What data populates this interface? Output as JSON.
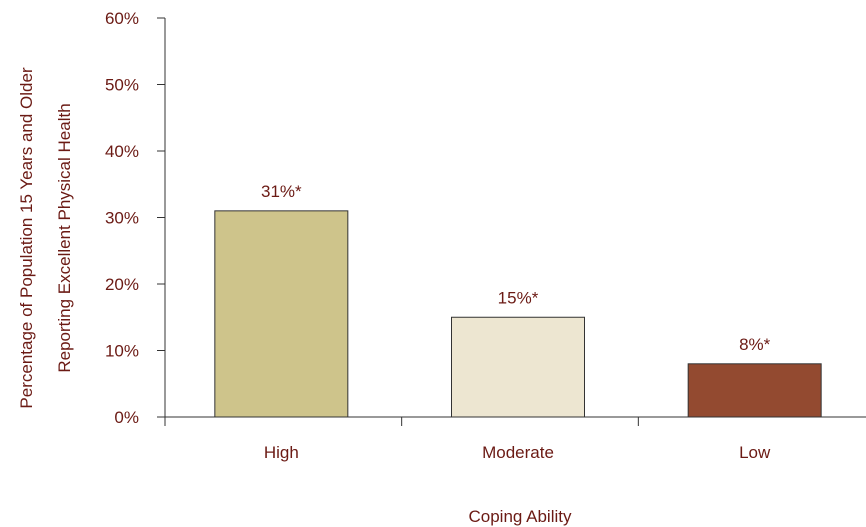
{
  "chart_data": {
    "type": "bar",
    "categories": [
      "High",
      "Moderate",
      "Low"
    ],
    "values": [
      31,
      15,
      8
    ],
    "data_labels": [
      "31%*",
      "15%*",
      "8%*"
    ],
    "colors": [
      "#cec48b",
      "#ede6d1",
      "#934a30"
    ],
    "title": "",
    "xlabel": "Coping Ability",
    "ylabel_lines": [
      "Percentage of Population 15 Years and Older",
      "Reporting Excellent Physical Health"
    ],
    "ylim": [
      0,
      60
    ],
    "yticks": [
      0,
      10,
      20,
      30,
      40,
      50,
      60
    ],
    "ytick_labels": [
      "0%",
      "10%",
      "20%",
      "30%",
      "40%",
      "50%",
      "60%"
    ],
    "grid": false,
    "legend": "none"
  }
}
